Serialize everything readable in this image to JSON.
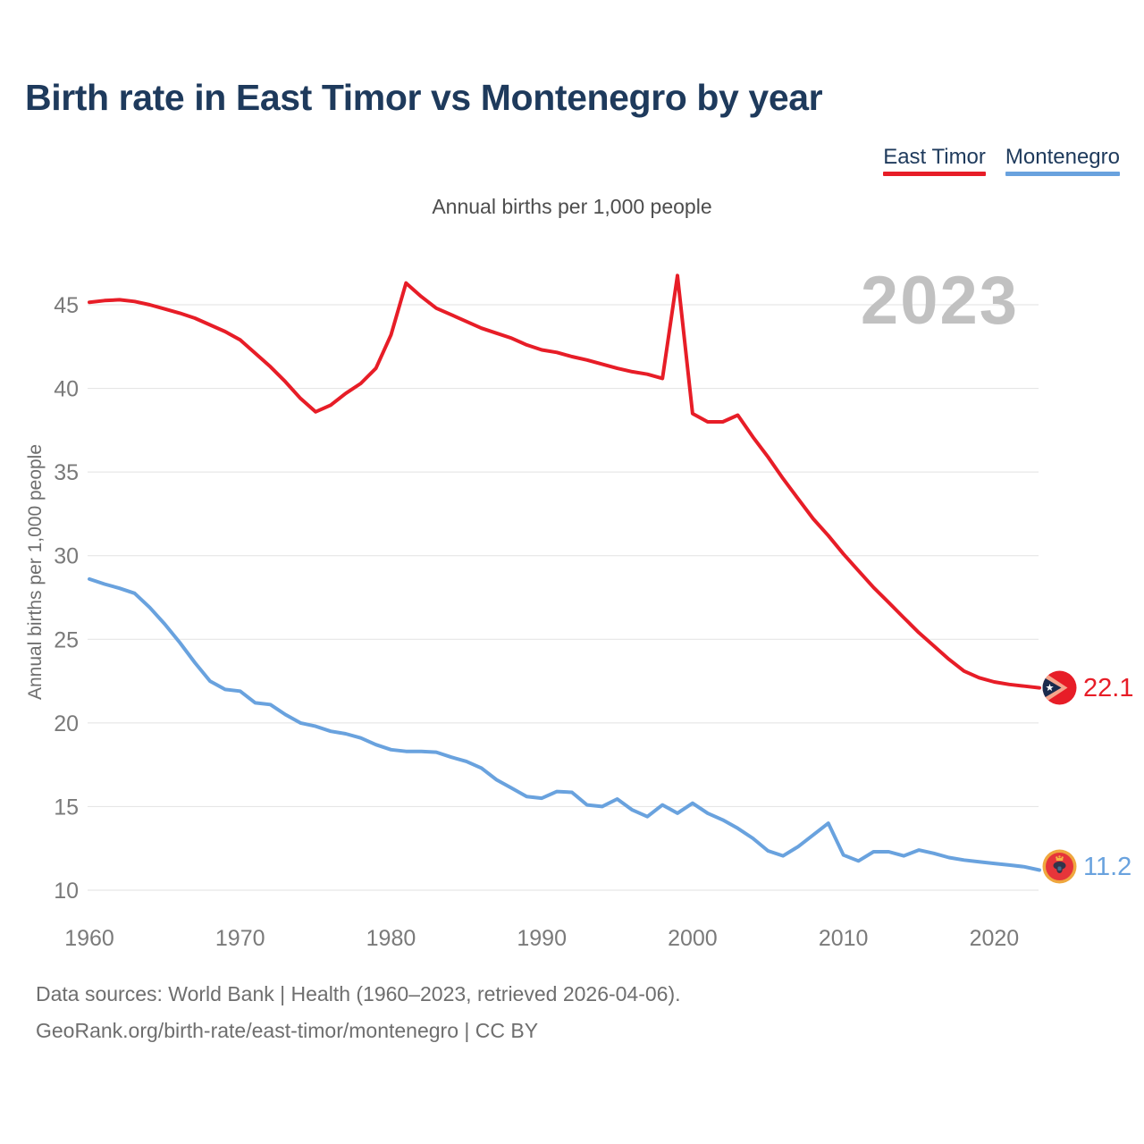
{
  "page": {
    "title": "Birth rate in East Timor vs Montenegro by year",
    "subtitle": "Annual births per 1,000 people",
    "watermark": "2023",
    "footer_line1": "Data sources: World Bank | Health (1960–2023, retrieved 2026-04-06).",
    "footer_line2": "GeoRank.org/birth-rate/east-timor/montenegro | CC BY"
  },
  "theme": {
    "title_color": "#1e3a5c",
    "east_timor_red": "#e71d27",
    "montenegro_blue": "#69a2de",
    "tick_gray": "#7a7a7a",
    "watermark_gray": "#c1c1c1"
  },
  "legend": [
    {
      "label": "East Timor",
      "color": "#e71d27"
    },
    {
      "label": "Montenegro",
      "color": "#69a2de"
    }
  ],
  "chart_data": {
    "type": "line",
    "title": "Birth rate in East Timor vs Montenegro by year",
    "subtitle": "Annual births per 1,000 people",
    "xlabel": "",
    "ylabel": "Annual births per 1,000 people",
    "ylim": [
      9.4,
      47.6
    ],
    "xlim": [
      1960,
      2023
    ],
    "yticks": [
      10,
      15,
      20,
      25,
      30,
      35,
      40,
      45
    ],
    "xticks": [
      1960,
      1970,
      1980,
      1990,
      2000,
      2010,
      2020
    ],
    "grid": "horizontal",
    "legend_position": "top-right",
    "x": [
      1960,
      1961,
      1962,
      1963,
      1964,
      1965,
      1966,
      1967,
      1968,
      1969,
      1970,
      1971,
      1972,
      1973,
      1974,
      1975,
      1976,
      1977,
      1978,
      1979,
      1980,
      1981,
      1982,
      1983,
      1984,
      1985,
      1986,
      1987,
      1988,
      1989,
      1990,
      1991,
      1992,
      1993,
      1994,
      1995,
      1996,
      1997,
      1998,
      1999,
      2000,
      2001,
      2002,
      2003,
      2004,
      2005,
      2006,
      2007,
      2008,
      2009,
      2010,
      2011,
      2012,
      2013,
      2014,
      2015,
      2016,
      2017,
      2018,
      2019,
      2020,
      2021,
      2022,
      2023
    ],
    "series": [
      {
        "name": "East Timor",
        "color": "#e71d27",
        "end_label": "22.1",
        "values": [
          45.15,
          45.25,
          45.3,
          45.2,
          45.0,
          44.75,
          44.5,
          44.2,
          43.8,
          43.4,
          42.9,
          42.1,
          41.3,
          40.4,
          39.4,
          38.6,
          39.0,
          39.7,
          40.3,
          41.2,
          43.2,
          46.3,
          45.5,
          44.8,
          44.4,
          44.0,
          43.6,
          43.3,
          43.0,
          42.6,
          42.3,
          42.15,
          41.9,
          41.7,
          41.45,
          41.2,
          41.0,
          40.85,
          40.6,
          46.75,
          38.5,
          38.0,
          38.0,
          38.4,
          37.1,
          35.9,
          34.6,
          33.4,
          32.2,
          31.2,
          30.1,
          29.1,
          28.1,
          27.2,
          26.3,
          25.4,
          24.6,
          23.8,
          23.1,
          22.7,
          22.45,
          22.3,
          22.2,
          22.1
        ]
      },
      {
        "name": "Montenegro",
        "color": "#69a2de",
        "end_label": "11.2",
        "values": [
          28.6,
          28.3,
          28.05,
          27.75,
          26.9,
          25.9,
          24.8,
          23.6,
          22.5,
          22.0,
          21.9,
          21.2,
          21.1,
          20.5,
          20.0,
          19.8,
          19.5,
          19.35,
          19.1,
          18.7,
          18.4,
          18.3,
          18.3,
          18.25,
          17.95,
          17.7,
          17.3,
          16.6,
          16.1,
          15.6,
          15.5,
          15.9,
          15.85,
          15.1,
          15.0,
          15.45,
          14.8,
          14.4,
          15.1,
          14.6,
          15.2,
          14.6,
          14.2,
          13.7,
          13.1,
          12.35,
          12.05,
          12.6,
          13.3,
          14.0,
          12.1,
          11.75,
          12.3,
          12.3,
          12.05,
          12.4,
          12.2,
          11.95,
          11.8,
          11.7,
          11.6,
          11.5,
          11.4,
          11.2
        ]
      }
    ]
  }
}
